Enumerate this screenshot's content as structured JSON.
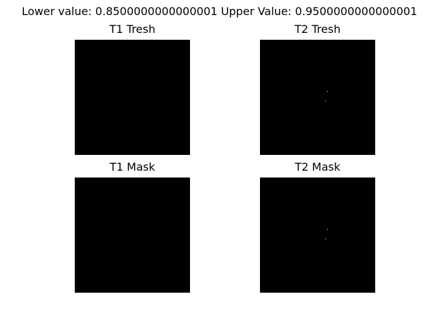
{
  "figure": {
    "suptitle": "Lower value: 0.8500000000000001 Upper Value: 0.9500000000000001"
  },
  "panels": [
    {
      "title": "T1 Tresh"
    },
    {
      "title": "T2 Tresh"
    },
    {
      "title": "T1 Mask"
    },
    {
      "title": "T2 Mask"
    }
  ],
  "colors": {
    "image_background": "#000000",
    "speck": "#ffffff",
    "figure_background": "#ffffff"
  }
}
